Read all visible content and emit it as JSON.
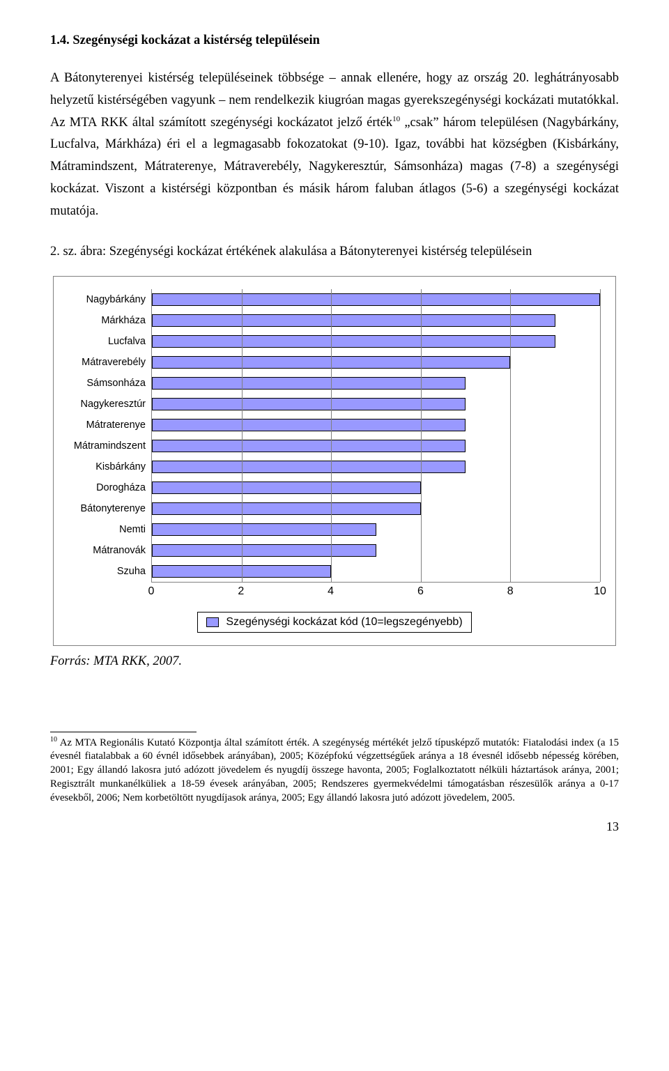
{
  "heading": "1.4. Szegénységi kockázat a kistérség településein",
  "paragraph": "A Bátonyterenyei kistérség településeinek többsége – annak ellenére, hogy az ország 20. leghátrányosabb helyzetű kistérségében vagyunk – nem rendelkezik kiugróan magas gyerek­szegénységi kockázati mutatókkal. Az MTA RKK által számított szegénységi kockázatot jelző érték",
  "footref": "10",
  "paragraph_cont": " „csak” három településen (Nagybárkány, Lucfalva, Márkháza) éri el a legmagasabb fokozatokat (9-10). Igaz, további hat községben (Kisbárkány, Mátramindszent, Mátraterenye, Mátraverebély, Nagykeresztúr, Sámsonháza) magas (7-8) a szegénységi kockázat. Viszont a kistérségi központban és másik három faluban átlagos (5-6) a szegénységi kockázat mutatója.",
  "figure_caption": "2. sz. ábra: Szegénységi kockázat értékének alakulása a Bátonyterenyei kistérség településein",
  "chart": {
    "type": "bar-horizontal",
    "categories": [
      "Nagybárkány",
      "Márkháza",
      "Lucfalva",
      "Mátraverebély",
      "Sámsonháza",
      "Nagykeresztúr",
      "Mátraterenye",
      "Mátramindszent",
      "Kisbárkány",
      "Dorogháza",
      "Bátonyterenye",
      "Nemti",
      "Mátranovák",
      "Szuha"
    ],
    "values": [
      10,
      9,
      9,
      8,
      7,
      7,
      7,
      7,
      7,
      6,
      6,
      5,
      5,
      4
    ],
    "x_ticks": [
      0,
      2,
      4,
      6,
      8,
      10
    ],
    "x_max": 10,
    "bar_fill": "#9999ff",
    "bar_border": "#000000",
    "grid_color": "#808080",
    "background": "#ffffff",
    "category_fontsize": 14.5,
    "tick_fontsize": 16,
    "legend_label": "Szegénységi kockázat kód (10=legszegényebb)"
  },
  "source": "Forrás: MTA RKK, 2007.",
  "footnote_num": "10",
  "footnote_text": " Az MTA Regionális Kutató Központja által számított érték. A szegénység mértékét jelző típusképző mutatók: Fiatalodási index (a 15 évesnél fiatalabbak a 60 évnél idősebbek arányában), 2005; Középfokú végzettségűek aránya a 18 évesnél idősebb népesség körében, 2001; Egy állandó lakosra jutó adózott jövedelem és nyugdíj összege havonta, 2005; Foglalkoztatott nélküli háztartások aránya, 2001; Regisztrált munkanélküliek a 18-59 évesek arányában, 2005; Rendszeres gyermekvédelmi támogatásban részesülők aránya a 0-17 évesekből, 2006; Nem korbetöltött nyugdíjasok aránya, 2005; Egy állandó lakosra jutó adózott jövedelem, 2005.",
  "page_number": "13"
}
